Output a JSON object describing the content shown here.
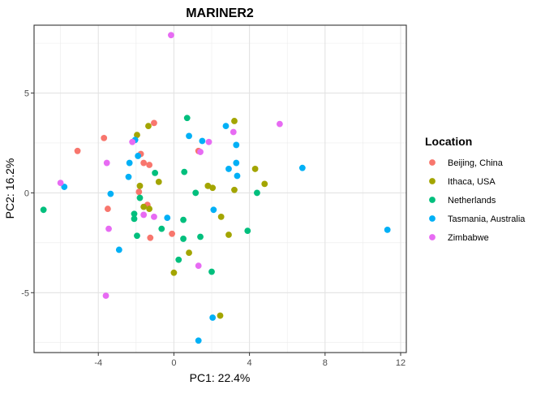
{
  "chart_data": {
    "type": "scatter",
    "title": "MARINER2",
    "xlabel": "PC1: 22.4%",
    "ylabel": "PC2: 16.2%",
    "xlim": [
      -7.4,
      12.3
    ],
    "ylim": [
      -8.0,
      8.4
    ],
    "x_ticks": [
      -4,
      0,
      4,
      8,
      12
    ],
    "x_tick_labels": [
      "-4",
      "0",
      "4",
      "8",
      "12"
    ],
    "y_ticks": [
      -5,
      0,
      5
    ],
    "y_tick_labels": [
      "-5",
      "0",
      "5"
    ],
    "grid": true,
    "legend_position": "right",
    "legend_title": "Location",
    "series": [
      {
        "name": "Beijing, China",
        "color": "#F8766D",
        "points": [
          [
            -3.7,
            2.75
          ],
          [
            -5.1,
            2.1
          ],
          [
            -3.5,
            -0.8
          ],
          [
            -1.75,
            1.95
          ],
          [
            -1.6,
            1.5
          ],
          [
            -1.3,
            1.4
          ],
          [
            -1.05,
            3.5
          ],
          [
            -1.85,
            0.05
          ],
          [
            -1.4,
            -0.6
          ],
          [
            -1.25,
            -2.25
          ],
          [
            -0.1,
            -2.05
          ],
          [
            1.3,
            2.1
          ]
        ]
      },
      {
        "name": "Ithaca, USA",
        "color": "#A3A500",
        "points": [
          [
            -1.95,
            2.9
          ],
          [
            -1.35,
            3.35
          ],
          [
            -0.8,
            0.55
          ],
          [
            -1.8,
            0.35
          ],
          [
            -1.6,
            -0.7
          ],
          [
            -1.3,
            -0.8
          ],
          [
            0.8,
            -3.0
          ],
          [
            0.0,
            -4.0
          ],
          [
            1.8,
            0.35
          ],
          [
            2.05,
            0.25
          ],
          [
            3.2,
            0.15
          ],
          [
            3.2,
            3.6
          ],
          [
            2.5,
            -1.2
          ],
          [
            2.9,
            -2.1
          ],
          [
            4.3,
            1.2
          ],
          [
            4.8,
            0.45
          ],
          [
            2.45,
            -6.15
          ]
        ]
      },
      {
        "name": "Netherlands",
        "color": "#00BF7D",
        "points": [
          [
            -6.9,
            -0.85
          ],
          [
            -2.1,
            -1.05
          ],
          [
            -2.1,
            -1.3
          ],
          [
            -1.95,
            -2.15
          ],
          [
            -1.8,
            -0.25
          ],
          [
            -1.0,
            1.0
          ],
          [
            -0.65,
            -1.8
          ],
          [
            0.5,
            -1.35
          ],
          [
            0.55,
            1.05
          ],
          [
            0.7,
            3.75
          ],
          [
            1.15,
            0.0
          ],
          [
            1.4,
            -2.2
          ],
          [
            0.5,
            -2.3
          ],
          [
            0.25,
            -3.35
          ],
          [
            2.0,
            -3.95
          ],
          [
            3.9,
            -1.9
          ],
          [
            4.4,
            0.0
          ]
        ]
      },
      {
        "name": "Tasmania, Australia",
        "color": "#00B0F6",
        "points": [
          [
            -5.8,
            0.3
          ],
          [
            -3.35,
            -0.05
          ],
          [
            -2.9,
            -2.85
          ],
          [
            -2.4,
            0.8
          ],
          [
            -2.35,
            1.5
          ],
          [
            -2.05,
            2.65
          ],
          [
            -1.9,
            1.85
          ],
          [
            -0.35,
            -1.25
          ],
          [
            0.8,
            2.85
          ],
          [
            1.5,
            2.6
          ],
          [
            2.75,
            3.35
          ],
          [
            2.9,
            1.2
          ],
          [
            2.1,
            -0.85
          ],
          [
            3.3,
            2.4
          ],
          [
            3.3,
            1.5
          ],
          [
            3.35,
            0.85
          ],
          [
            6.8,
            1.25
          ],
          [
            11.3,
            -1.85
          ],
          [
            2.05,
            -6.25
          ],
          [
            1.3,
            -7.4
          ]
        ]
      },
      {
        "name": "Zimbabwe",
        "color": "#E76BF3",
        "points": [
          [
            -0.15,
            7.9
          ],
          [
            -6.0,
            0.5
          ],
          [
            -3.55,
            1.5
          ],
          [
            -2.2,
            2.55
          ],
          [
            -3.45,
            -1.8
          ],
          [
            -3.6,
            -5.15
          ],
          [
            -1.05,
            -1.2
          ],
          [
            -1.6,
            -1.1
          ],
          [
            1.4,
            2.05
          ],
          [
            1.85,
            2.55
          ],
          [
            3.15,
            3.05
          ],
          [
            5.6,
            3.45
          ],
          [
            1.3,
            -3.65
          ]
        ]
      }
    ]
  }
}
